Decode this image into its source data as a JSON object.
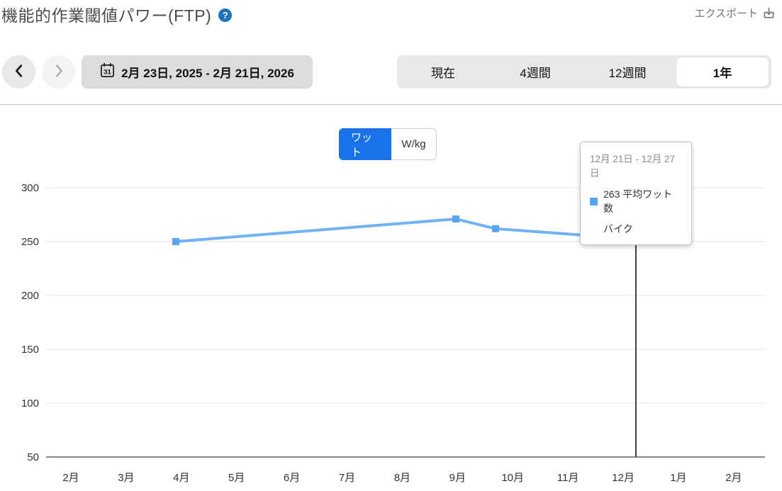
{
  "colors": {
    "accent_blue": "#1a73e8",
    "line_blue": "#70b2f3",
    "marker_blue": "#58a4ef",
    "help_blue": "#1e74bc",
    "grid": "#e9e9e9",
    "axis": "#8a8a8a",
    "crosshair": "#3c3c3c",
    "label": "#333333"
  },
  "header": {
    "title": "機能的作業閾値パワー(FTP)",
    "help_glyph": "?",
    "export_label": "エクスポート"
  },
  "nav": {
    "date_range": "2月 23日, 2025 - 2月 21日, 2026",
    "calendar_day": "31"
  },
  "range_tabs": {
    "items": [
      "現在",
      "4週間",
      "12週間",
      "1年"
    ],
    "selected": "1年"
  },
  "unit_toggle": {
    "options": [
      "ワット",
      "W/kg"
    ],
    "selected": "ワット"
  },
  "tooltip": {
    "date_range": "12月 21日 - 12月 27日",
    "value_label": "263 平均ワット数",
    "activity": "バイク"
  },
  "chart_data": {
    "type": "line",
    "title": "機能的作業閾値パワー(FTP)",
    "ylabel": "ワット",
    "ylim": [
      50,
      300
    ],
    "yticks": [
      300,
      250,
      200,
      150,
      100,
      50
    ],
    "x_tick_labels": [
      "2月",
      "3月",
      "4月",
      "5月",
      "6月",
      "7月",
      "8月",
      "9月",
      "10月",
      "11月",
      "12月",
      "1月",
      "2月"
    ],
    "grid": true,
    "legend": false,
    "series": [
      {
        "name": "平均ワット数",
        "points": [
          {
            "month_x": 1.9,
            "value": 250
          },
          {
            "month_x": 6.97,
            "value": 271
          },
          {
            "month_x": 7.69,
            "value": 262
          },
          {
            "month_x": 9.28,
            "value": 256
          },
          {
            "month_x": 10.23,
            "value": 263,
            "selected": true,
            "tooltip_date": "12月 21日 - 12月 27日"
          }
        ]
      }
    ]
  }
}
